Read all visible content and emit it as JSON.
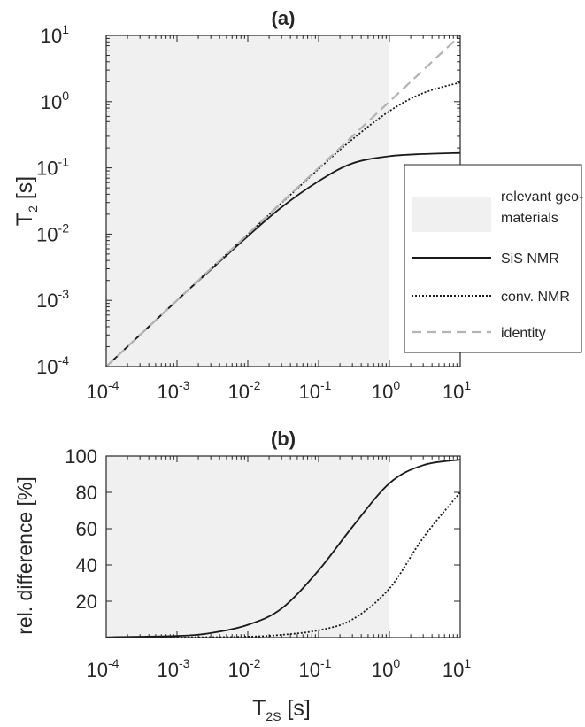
{
  "chart_data": [
    {
      "type": "line",
      "title": "(a)",
      "xlabel": "",
      "ylabel": {
        "main": "T",
        "sub": "2",
        "unit": " [s]"
      },
      "xscale": "log",
      "yscale": "log",
      "xlim": [
        0.0001,
        10
      ],
      "ylim": [
        0.0001,
        10
      ],
      "xticks": [
        {
          "base": "10",
          "exp": "-4"
        },
        {
          "base": "10",
          "exp": "-3"
        },
        {
          "base": "10",
          "exp": "-2"
        },
        {
          "base": "10",
          "exp": "-1"
        },
        {
          "base": "10",
          "exp": "0"
        },
        {
          "base": "10",
          "exp": "1"
        }
      ],
      "yticks": [
        {
          "base": "10",
          "exp": "-4"
        },
        {
          "base": "10",
          "exp": "-3"
        },
        {
          "base": "10",
          "exp": "-2"
        },
        {
          "base": "10",
          "exp": "-1"
        },
        {
          "base": "10",
          "exp": "0"
        },
        {
          "base": "10",
          "exp": "1"
        }
      ],
      "shaded_region": {
        "x": [
          0.0001,
          1
        ],
        "label": [
          "relevant geo-",
          "materials"
        ],
        "color": "#f0f0f0"
      },
      "series": [
        {
          "name": "SiS NMR",
          "style": "solid",
          "color": "#1a1a1a",
          "x": [
            0.0001,
            0.001,
            0.003,
            0.01,
            0.03,
            0.1,
            0.3,
            1,
            3,
            10
          ],
          "y": [
            0.0001,
            0.001,
            0.0029,
            0.0093,
            0.0255,
            0.063,
            0.117,
            0.15,
            0.162,
            0.168
          ]
        },
        {
          "name": "conv. NMR",
          "style": "dotted",
          "color": "#1a1a1a",
          "x": [
            0.0001,
            0.001,
            0.01,
            0.03,
            0.1,
            0.3,
            1,
            3,
            10
          ],
          "y": [
            0.0001,
            0.001,
            0.0099,
            0.0295,
            0.096,
            0.27,
            0.72,
            1.35,
            1.95
          ]
        },
        {
          "name": "identity",
          "style": "dashed",
          "color": "#b3b3b3",
          "x": [
            0.0001,
            10
          ],
          "y": [
            0.0001,
            10
          ]
        }
      ],
      "legend_position": "right"
    },
    {
      "type": "line",
      "title": "(b)",
      "xlabel": {
        "main": "T",
        "sub": "2S",
        "unit": " [s]"
      },
      "ylabel": "rel. difference [%]",
      "xscale": "log",
      "yscale": "linear",
      "xlim": [
        0.0001,
        10
      ],
      "ylim": [
        0,
        100
      ],
      "xticks": [
        {
          "base": "10",
          "exp": "-4"
        },
        {
          "base": "10",
          "exp": "-3"
        },
        {
          "base": "10",
          "exp": "-2"
        },
        {
          "base": "10",
          "exp": "-1"
        },
        {
          "base": "10",
          "exp": "0"
        },
        {
          "base": "10",
          "exp": "1"
        }
      ],
      "yticks": [
        "20",
        "40",
        "60",
        "80",
        "100"
      ],
      "shaded_region": {
        "x": [
          0.0001,
          1
        ],
        "color": "#f0f0f0"
      },
      "series": [
        {
          "name": "SiS NMR",
          "style": "solid",
          "color": "#1a1a1a",
          "x": [
            0.0001,
            0.001,
            0.003,
            0.01,
            0.03,
            0.1,
            0.3,
            1,
            3,
            10
          ],
          "y": [
            0.2,
            0.9,
            2.5,
            7,
            16,
            37,
            61,
            85,
            95,
            98
          ]
        },
        {
          "name": "conv. NMR",
          "style": "dotted",
          "color": "#1a1a1a",
          "x": [
            0.0001,
            0.001,
            0.01,
            0.03,
            0.1,
            0.3,
            1,
            3,
            10
          ],
          "y": [
            0,
            0.1,
            0.5,
            1.5,
            4,
            10,
            27,
            55,
            80
          ]
        }
      ]
    }
  ]
}
